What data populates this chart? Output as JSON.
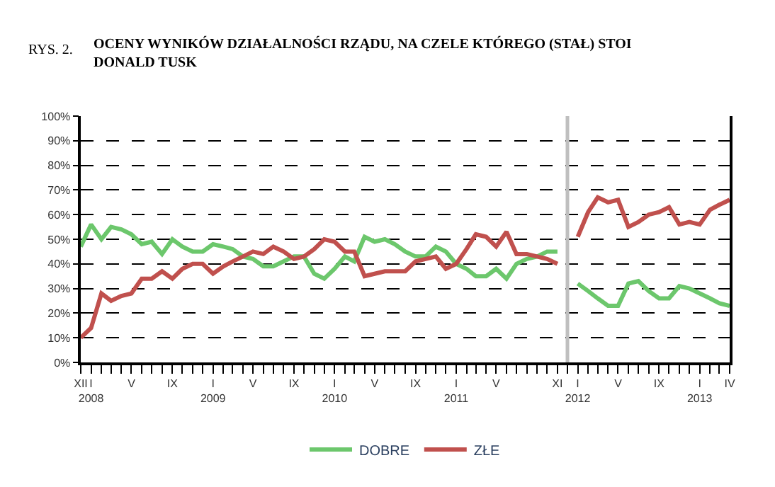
{
  "chart_data": {
    "type": "line",
    "title": "OCENY WYNIKÓW DZIAŁALNOŚCI RZĄDU, NA CZELE KTÓREGO (STAŁ) STOI DONALD TUSK",
    "annotations": [
      "RYS. 2."
    ],
    "x": [
      "2007-12",
      "2008-01",
      "2008-02",
      "2008-03",
      "2008-04",
      "2008-05",
      "2008-06",
      "2008-07",
      "2008-08",
      "2008-09",
      "2008-10",
      "2008-11",
      "2008-12",
      "2009-01",
      "2009-02",
      "2009-03",
      "2009-04",
      "2009-05",
      "2009-06",
      "2009-07",
      "2009-08",
      "2009-09",
      "2009-10",
      "2009-11",
      "2009-12",
      "2010-01",
      "2010-02",
      "2010-03",
      "2010-04",
      "2010-05",
      "2010-06",
      "2010-07",
      "2010-08",
      "2010-09",
      "2010-10",
      "2010-11",
      "2010-12",
      "2011-01",
      "2011-02",
      "2011-03",
      "2011-04",
      "2011-05",
      "2011-06",
      "2011-07",
      "2011-08",
      "2011-09",
      "2011-10",
      "2011-11",
      "2011-12",
      "2012-01",
      "2012-02",
      "2012-03",
      "2012-04",
      "2012-05",
      "2012-06",
      "2012-07",
      "2012-08",
      "2012-09",
      "2012-10",
      "2012-11",
      "2012-12",
      "2013-01",
      "2013-02",
      "2013-03",
      "2013-04"
    ],
    "series": [
      {
        "name": "DOBRE",
        "color": "#6cc76c",
        "values": [
          47,
          56,
          50,
          55,
          54,
          52,
          48,
          49,
          44,
          50,
          47,
          45,
          45,
          48,
          47,
          46,
          43,
          42,
          39,
          39,
          41,
          43,
          43,
          36,
          34,
          38,
          43,
          41,
          51,
          49,
          50,
          48,
          45,
          43,
          43,
          47,
          45,
          40,
          38,
          35,
          35,
          38,
          34,
          40,
          42,
          43,
          45,
          45,
          null,
          32,
          29,
          26,
          23,
          23,
          32,
          33,
          29,
          26,
          26,
          31,
          30,
          28,
          26,
          24,
          23
        ]
      },
      {
        "name": "ZŁE",
        "color": "#c0504d",
        "values": [
          10,
          14,
          28,
          25,
          27,
          28,
          34,
          34,
          37,
          34,
          38,
          40,
          40,
          36,
          39,
          41,
          43,
          45,
          44,
          47,
          45,
          42,
          43,
          46,
          50,
          49,
          45,
          45,
          35,
          36,
          37,
          37,
          37,
          41,
          42,
          43,
          38,
          40,
          46,
          52,
          51,
          47,
          53,
          44,
          44,
          43,
          42,
          40,
          null,
          51,
          61,
          67,
          65,
          66,
          55,
          57,
          60,
          61,
          63,
          56,
          57,
          56,
          62,
          64,
          66
        ]
      }
    ],
    "xlim": [
      "2007-12",
      "2013-04"
    ],
    "xticks": [
      {
        "value": "2007-12",
        "label": "XII"
      },
      {
        "value": "2008-01",
        "label": "I\n2008"
      },
      {
        "value": "2008-02",
        "label": null
      },
      {
        "value": "2008-03",
        "label": null
      },
      {
        "value": "2008-04",
        "label": null
      },
      {
        "value": "2008-05",
        "label": "V"
      },
      {
        "value": "2008-06",
        "label": null
      },
      {
        "value": "2008-07",
        "label": null
      },
      {
        "value": "2008-08",
        "label": null
      },
      {
        "value": "2008-09",
        "label": "IX"
      },
      {
        "value": "2008-10",
        "label": null
      },
      {
        "value": "2008-11",
        "label": null
      },
      {
        "value": "2008-12",
        "label": null
      },
      {
        "value": "2009-01",
        "label": "I\n2009"
      },
      {
        "value": "2009-02",
        "label": null
      },
      {
        "value": "2009-03",
        "label": null
      },
      {
        "value": "2009-04",
        "label": null
      },
      {
        "value": "2009-05",
        "label": "V"
      },
      {
        "value": "2009-06",
        "label": null
      },
      {
        "value": "2009-07",
        "label": null
      },
      {
        "value": "2009-08",
        "label": null
      },
      {
        "value": "2009-09",
        "label": "IX"
      },
      {
        "value": "2009-10",
        "label": null
      },
      {
        "value": "2009-11",
        "label": null
      },
      {
        "value": "2009-12",
        "label": null
      },
      {
        "value": "2010-01",
        "label": "I\n2010"
      },
      {
        "value": "2010-02",
        "label": null
      },
      {
        "value": "2010-03",
        "label": null
      },
      {
        "value": "2010-04",
        "label": null
      },
      {
        "value": "2010-05",
        "label": "V"
      },
      {
        "value": "2010-06",
        "label": null
      },
      {
        "value": "2010-07",
        "label": null
      },
      {
        "value": "2010-08",
        "label": null
      },
      {
        "value": "2010-09",
        "label": "IX"
      },
      {
        "value": "2010-10",
        "label": null
      },
      {
        "value": "2010-11",
        "label": null
      },
      {
        "value": "2010-12",
        "label": null
      },
      {
        "value": "2011-01",
        "label": "I\n2011"
      },
      {
        "value": "2011-02",
        "label": null
      },
      {
        "value": "2011-03",
        "label": null
      },
      {
        "value": "2011-04",
        "label": null
      },
      {
        "value": "2011-05",
        "label": "V"
      },
      {
        "value": "2011-06",
        "label": null
      },
      {
        "value": "2011-07",
        "label": null
      },
      {
        "value": "2011-08",
        "label": null
      },
      {
        "value": "2011-09",
        "label": null
      },
      {
        "value": "2011-10",
        "label": null
      },
      {
        "value": "2011-11",
        "label": "XI"
      },
      {
        "value": "2011-12",
        "label": null
      },
      {
        "value": "2012-01",
        "label": "I\n2012"
      },
      {
        "value": "2012-02",
        "label": null
      },
      {
        "value": "2012-03",
        "label": null
      },
      {
        "value": "2012-04",
        "label": null
      },
      {
        "value": "2012-05",
        "label": "V"
      },
      {
        "value": "2012-06",
        "label": null
      },
      {
        "value": "2012-07",
        "label": null
      },
      {
        "value": "2012-08",
        "label": null
      },
      {
        "value": "2012-09",
        "label": "IX"
      },
      {
        "value": "2012-10",
        "label": null
      },
      {
        "value": "2012-11",
        "label": null
      },
      {
        "value": "2012-12",
        "label": null
      },
      {
        "value": "2013-01",
        "label": "I\n2013"
      },
      {
        "value": "2013-02",
        "label": null
      },
      {
        "value": "2013-03",
        "label": null
      },
      {
        "value": "2013-04",
        "label": "IV"
      }
    ],
    "ylim": [
      0,
      100
    ],
    "yticks": [
      {
        "value": 0,
        "label": "0%"
      },
      {
        "value": 10,
        "label": "10%"
      },
      {
        "value": 20,
        "label": "20%"
      },
      {
        "value": 30,
        "label": "30%"
      },
      {
        "value": 40,
        "label": "40%"
      },
      {
        "value": 50,
        "label": "50%"
      },
      {
        "value": 60,
        "label": "60%"
      },
      {
        "value": 70,
        "label": "70%"
      },
      {
        "value": 80,
        "label": "80%"
      },
      {
        "value": 90,
        "label": "90%"
      },
      {
        "value": 100,
        "label": "100%"
      }
    ],
    "ref_lines": [
      {
        "axis": "x",
        "value": "2011-12",
        "color": "#bfbfbf"
      }
    ],
    "grid": "y",
    "legend": "bottom",
    "marker": "none",
    "line_style": "solid"
  }
}
